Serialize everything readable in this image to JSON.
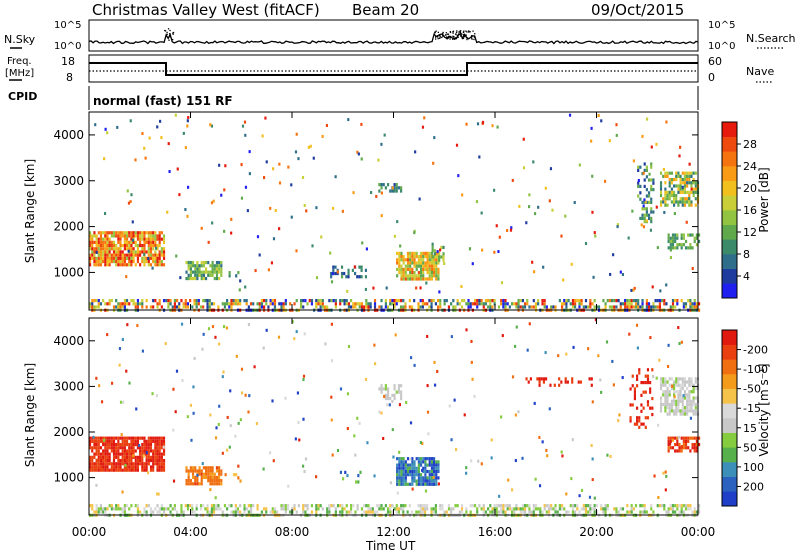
{
  "header": {
    "title": "Christmas Valley West (fitACF)",
    "beam": "Beam 20",
    "date": "09/Oct/2015"
  },
  "nsky_panel": {
    "left_label": "N.Sky",
    "right_label": "N.Search",
    "left_ticks": [
      "10^5",
      "10^0"
    ],
    "right_ticks": [
      "10^5",
      "10^0"
    ]
  },
  "freq_panel": {
    "left_label_line1": "Freq.",
    "left_label_line2": "[MHz]",
    "left_ticks": [
      "18",
      "8"
    ],
    "right_label": "Nave",
    "right_ticks": [
      "60",
      "0"
    ]
  },
  "cpid": {
    "label": "CPID",
    "value": "normal (fast) 151 RF"
  },
  "chart_data": [
    {
      "type": "heatmap",
      "name": "power",
      "ylabel": "Slant Range [km]",
      "ylim": [
        180,
        4500
      ],
      "yticks": [
        1000,
        2000,
        3000,
        4000
      ],
      "xlim": [
        0,
        24
      ],
      "colorbar": {
        "label": "Power [dB]",
        "ticks": [
          4,
          8,
          12,
          16,
          20,
          24,
          28
        ],
        "colors": [
          "#1f1fef",
          "#1e3c9e",
          "#2f6e8a",
          "#3b8a6a",
          "#5fa84c",
          "#93c441",
          "#c9cf39",
          "#f2c01e",
          "#f99b14",
          "#f6740f",
          "#ef4a0d",
          "#e61a0d"
        ]
      }
    },
    {
      "type": "heatmap",
      "name": "velocity",
      "ylabel": "Slant Range [km]",
      "ylim": [
        180,
        4500
      ],
      "yticks": [
        1000,
        2000,
        3000,
        4000
      ],
      "xlim": [
        0,
        24
      ],
      "xticks": [
        "00:00",
        "04:00",
        "08:00",
        "12:00",
        "16:00",
        "20:00",
        "00:00"
      ],
      "xlabel": "Time UT",
      "colorbar": {
        "label": "Velocity [m s⁻¹]",
        "ticks": [
          "200",
          "100",
          "50",
          "15",
          "-15",
          "-50",
          "-100",
          "-200"
        ],
        "colors": [
          "#1f3fc8",
          "#2b62c0",
          "#3c8fb8",
          "#56b04b",
          "#85cc3f",
          "#c8c8c8",
          "#d9d9d9",
          "#f5c24a",
          "#f59b1c",
          "#f06f10",
          "#ea3f0e",
          "#e11a10"
        ]
      }
    }
  ]
}
